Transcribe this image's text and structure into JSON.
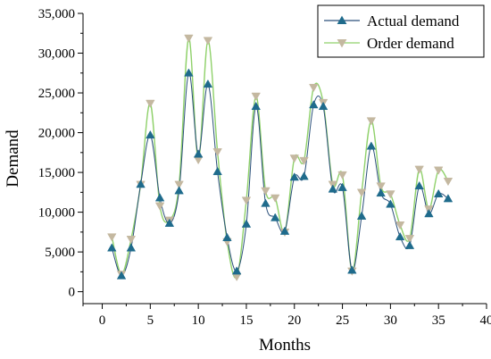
{
  "chart_data": {
    "type": "line",
    "xlabel": "Months",
    "ylabel": "Demand",
    "xlim": [
      -2,
      40
    ],
    "ylim": [
      -1500,
      35000
    ],
    "x_ticks": [
      0,
      5,
      10,
      15,
      20,
      25,
      30,
      35,
      40
    ],
    "x_tick_labels": [
      "0",
      "5",
      "10",
      "15",
      "20",
      "25",
      "30",
      "35",
      "40"
    ],
    "y_ticks": [
      0,
      5000,
      10000,
      15000,
      20000,
      25000,
      30000,
      35000
    ],
    "y_tick_labels": [
      "0",
      "5,000",
      "10,000",
      "15,000",
      "20,000",
      "25,000",
      "30,000",
      "35,000"
    ],
    "legend_position": "top-right",
    "grid": false,
    "x": [
      1,
      2,
      3,
      4,
      5,
      6,
      7,
      8,
      9,
      10,
      11,
      12,
      13,
      14,
      15,
      16,
      17,
      18,
      19,
      20,
      21,
      22,
      23,
      24,
      25,
      26,
      27,
      28,
      29,
      30,
      31,
      32,
      33,
      34,
      35,
      36
    ],
    "series": [
      {
        "name": "Actual demand",
        "color": "#2a4f7a",
        "marker_color": "#1f6b8c",
        "marker": "triangle-up",
        "values": [
          5500,
          2000,
          5500,
          13500,
          19700,
          11800,
          8600,
          12700,
          27500,
          17300,
          26100,
          15100,
          6800,
          2600,
          8500,
          23300,
          11100,
          9300,
          7600,
          14400,
          14500,
          23500,
          23300,
          12900,
          13100,
          2700,
          9500,
          18300,
          12400,
          11000,
          6900,
          5800,
          13300,
          9800,
          12300,
          11700
        ]
      },
      {
        "name": "Order demand",
        "color": "#8fd16a",
        "marker_color": "#c4b8a0",
        "marker": "triangle-down",
        "values": [
          6900,
          2200,
          6600,
          13500,
          23700,
          10800,
          9000,
          13500,
          31900,
          16600,
          31600,
          17600,
          6300,
          1900,
          11500,
          24600,
          12700,
          11800,
          7500,
          16800,
          16500,
          25700,
          23800,
          13500,
          14700,
          2600,
          12500,
          21500,
          13300,
          12300,
          8400,
          6700,
          15400,
          10400,
          15300,
          13900
        ]
      }
    ]
  }
}
